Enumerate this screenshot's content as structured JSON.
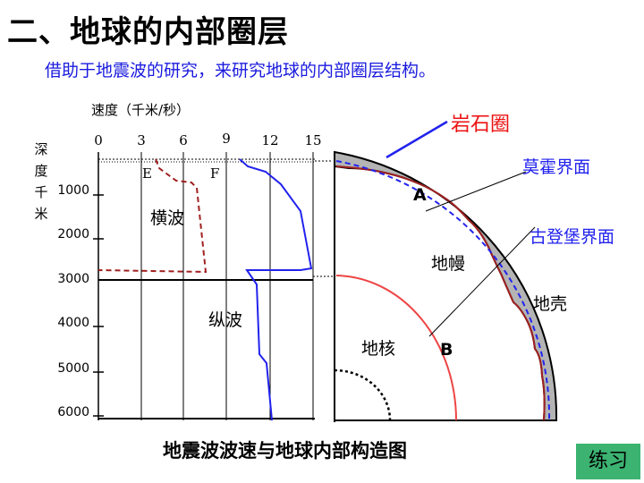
{
  "title": "二、地球的内部圈层",
  "subtitle": "借助于地震波的研究，来研究地球的内部圈层结构。",
  "chart": {
    "velocity_label": "速度（千米/秒）",
    "velocity_ticks": [
      "0",
      "3",
      "6",
      "9",
      "12",
      "15"
    ],
    "depth_label_chars": [
      "深",
      "度",
      "千",
      "米"
    ],
    "depth_ticks": [
      "1000",
      "2000",
      "3000",
      "4000",
      "5000",
      "6000"
    ],
    "marker_e": "E",
    "marker_f": "F",
    "s_wave_label": "横波",
    "p_wave_label": "纵波"
  },
  "earth": {
    "lithosphere": "岩石圈",
    "moho": "莫霍界面",
    "gutenberg": "古登堡界面",
    "mantle": "地幔",
    "crust": "地壳",
    "core": "地核",
    "marker_a": "A",
    "marker_b": "B"
  },
  "caption": "地震波波速与地球内部构造图",
  "practice_button": "练习",
  "colors": {
    "subtitle": "#1a1adf",
    "p_wave": "#2222ee",
    "s_wave": "#a02020",
    "lithosphere_label": "#ee1111",
    "core_boundary": "#ee4444",
    "button_bg": "#3cb371"
  }
}
